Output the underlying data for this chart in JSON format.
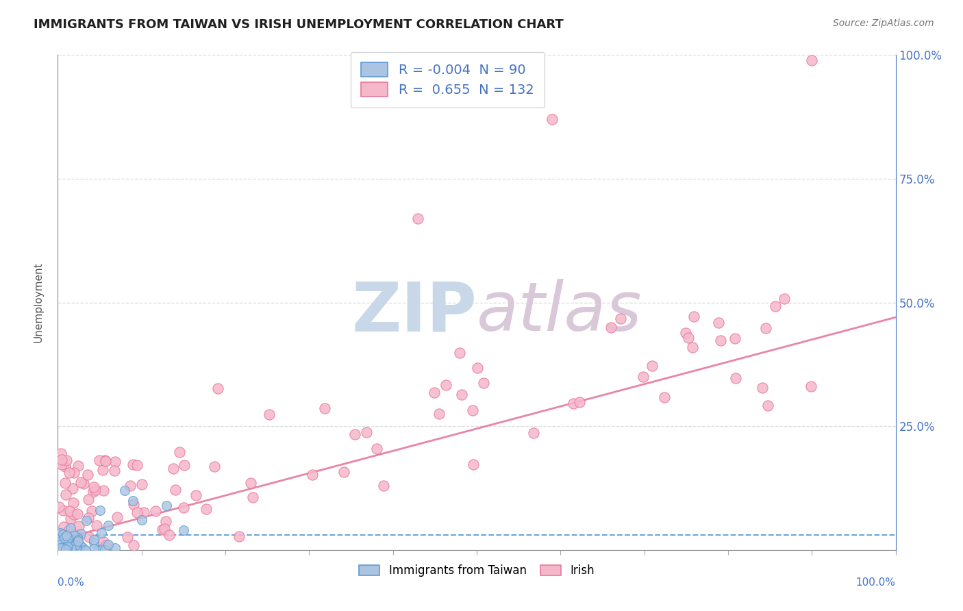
{
  "title": "IMMIGRANTS FROM TAIWAN VS IRISH UNEMPLOYMENT CORRELATION CHART",
  "source_text": "Source: ZipAtlas.com",
  "ylabel": "Unemployment",
  "background_color": "#ffffff",
  "plot_bg_color": "#ffffff",
  "grid_color": "#cccccc",
  "series": [
    {
      "name": "Immigrants from Taiwan",
      "color": "#aac4e2",
      "edge_color": "#5b9bd5",
      "R": -0.004,
      "N": 90,
      "line_color": "#5b9bd5",
      "line_style": "--"
    },
    {
      "name": "Irish",
      "color": "#f5b8cb",
      "edge_color": "#e8779a",
      "R": 0.655,
      "N": 132,
      "line_color": "#e8779a",
      "line_style": "-"
    }
  ],
  "y_ticks": [
    0.0,
    0.25,
    0.5,
    0.75,
    1.0
  ],
  "y_tick_labels_right": [
    "",
    "25.0%",
    "50.0%",
    "75.0%",
    "100.0%"
  ],
  "xlim": [
    0.0,
    1.0
  ],
  "ylim": [
    0.0,
    1.0
  ],
  "right_axis_color": "#4472c4",
  "title_color": "#1f1f1f",
  "title_fontsize": 13,
  "legend_R_color": "#4472c4",
  "watermark_zip_color": "#c8d8e8",
  "watermark_atlas_color": "#d8c8d8"
}
